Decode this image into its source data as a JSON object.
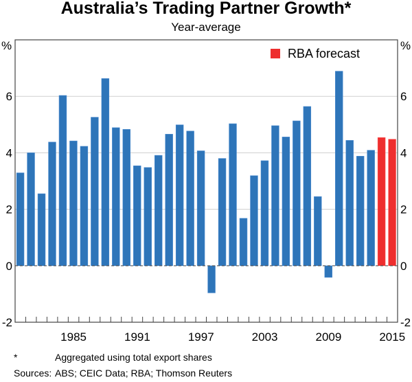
{
  "chart_data": {
    "type": "bar",
    "title": "Australia’s Trading Partner Growth*",
    "subtitle": "Year-average",
    "ylabel_left": "%",
    "ylabel_right": "%",
    "ylim": [
      -2,
      8
    ],
    "yticks": [
      -2,
      0,
      2,
      4,
      6
    ],
    "xtick_labels": [
      "1985",
      "1991",
      "1997",
      "2003",
      "2009",
      "2015"
    ],
    "grid": true,
    "legend": {
      "label": "RBA forecast",
      "placement": "top-right"
    },
    "colors": {
      "actual": "#2e75b9",
      "forecast": "#ee2e2e"
    },
    "categories": [
      1980,
      1981,
      1982,
      1983,
      1984,
      1985,
      1986,
      1987,
      1988,
      1989,
      1990,
      1991,
      1992,
      1993,
      1994,
      1995,
      1996,
      1997,
      1998,
      1999,
      2000,
      2001,
      2002,
      2003,
      2004,
      2005,
      2006,
      2007,
      2008,
      2009,
      2010,
      2011,
      2012,
      2013,
      2014,
      2015
    ],
    "values": [
      3.29,
      4.0,
      2.55,
      4.38,
      6.03,
      4.42,
      4.23,
      5.26,
      6.63,
      4.89,
      4.83,
      3.54,
      3.48,
      3.91,
      4.66,
      4.99,
      4.77,
      4.07,
      -0.96,
      3.8,
      5.03,
      1.68,
      3.19,
      3.72,
      4.96,
      4.56,
      5.13,
      5.64,
      2.45,
      -0.41,
      6.89,
      4.44,
      3.88,
      4.09,
      4.54,
      4.48
    ],
    "forecast_years": [
      2014,
      2015
    ]
  },
  "footnotes": {
    "asterisk_mark": "*",
    "asterisk_text": "Aggregated using total export shares",
    "sources_label": "Sources:",
    "sources_text": "ABS; CEIC Data; RBA; Thomson Reuters"
  }
}
